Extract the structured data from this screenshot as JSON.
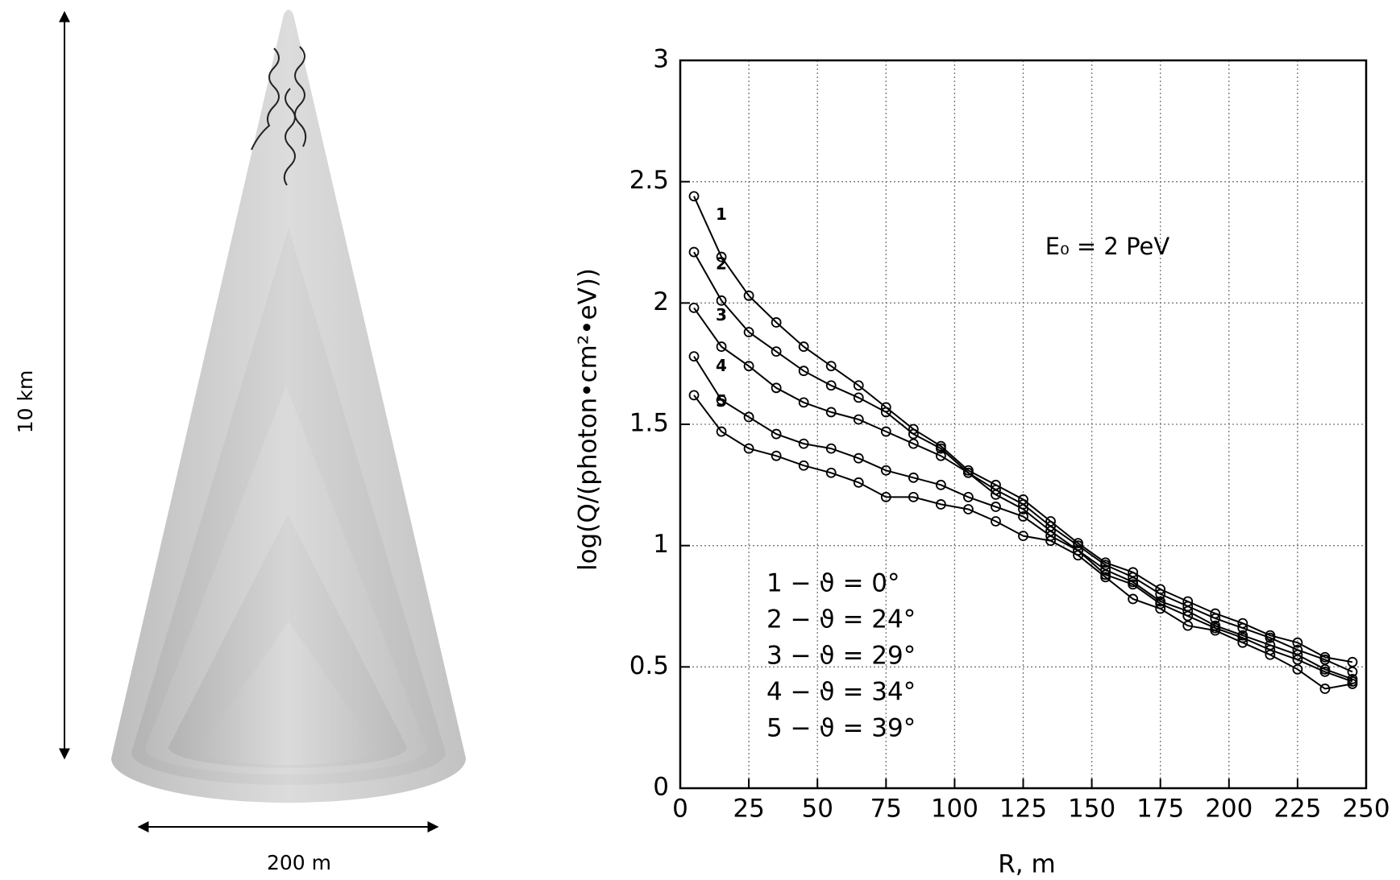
{
  "diagram": {
    "height_label": "10 km",
    "width_label": "200 m"
  },
  "chart_data": {
    "type": "line",
    "annotation": "E₀ = 2 PeV",
    "x_label": "R, m",
    "y_label": "log(Q/(photon•cm²•eV))",
    "x": [
      5,
      15,
      25,
      35,
      45,
      55,
      65,
      75,
      85,
      95,
      105,
      115,
      125,
      135,
      145,
      155,
      165,
      175,
      185,
      195,
      205,
      215,
      225,
      235,
      245
    ],
    "series": [
      {
        "name": "1 − ϑ = 0°",
        "label": "1",
        "color": "#000000",
        "values": [
          2.44,
          2.19,
          2.03,
          1.92,
          1.82,
          1.74,
          1.66,
          1.57,
          1.48,
          1.41,
          1.31,
          1.25,
          1.19,
          1.1,
          1.01,
          0.93,
          0.89,
          0.82,
          0.77,
          0.72,
          0.68,
          0.63,
          0.6,
          0.54,
          0.52
        ]
      },
      {
        "name": "2 − ϑ = 24°",
        "label": "2",
        "color": "#000000",
        "values": [
          2.21,
          2.01,
          1.88,
          1.8,
          1.72,
          1.66,
          1.61,
          1.55,
          1.46,
          1.4,
          1.3,
          1.23,
          1.17,
          1.08,
          1.0,
          0.92,
          0.87,
          0.8,
          0.75,
          0.7,
          0.66,
          0.62,
          0.57,
          0.53,
          0.48
        ]
      },
      {
        "name": "3 − ϑ = 29°",
        "label": "3",
        "color": "#000000",
        "values": [
          1.98,
          1.82,
          1.74,
          1.65,
          1.59,
          1.55,
          1.52,
          1.47,
          1.42,
          1.37,
          1.3,
          1.21,
          1.15,
          1.06,
          0.98,
          0.9,
          0.85,
          0.77,
          0.73,
          0.67,
          0.63,
          0.59,
          0.55,
          0.49,
          0.45
        ]
      },
      {
        "name": "4 − ϑ = 34°",
        "label": "4",
        "color": "#000000",
        "values": [
          1.78,
          1.6,
          1.53,
          1.46,
          1.42,
          1.4,
          1.36,
          1.31,
          1.28,
          1.25,
          1.2,
          1.16,
          1.12,
          1.04,
          0.98,
          0.88,
          0.84,
          0.76,
          0.71,
          0.66,
          0.62,
          0.57,
          0.53,
          0.48,
          0.44
        ]
      },
      {
        "name": "5 − ϑ = 39°",
        "label": "5",
        "color": "#000000",
        "values": [
          1.62,
          1.47,
          1.4,
          1.37,
          1.33,
          1.3,
          1.26,
          1.2,
          1.2,
          1.17,
          1.15,
          1.1,
          1.04,
          1.02,
          0.96,
          0.87,
          0.78,
          0.74,
          0.67,
          0.65,
          0.6,
          0.55,
          0.49,
          0.41,
          0.43
        ]
      }
    ],
    "xlim": [
      0,
      250
    ],
    "xticks": [
      0,
      25,
      50,
      75,
      100,
      125,
      150,
      175,
      200,
      225,
      250
    ],
    "ylim": [
      0,
      3
    ],
    "yticks": [
      0,
      0.5,
      1,
      1.5,
      2,
      2.5,
      3
    ],
    "grid": true
  }
}
